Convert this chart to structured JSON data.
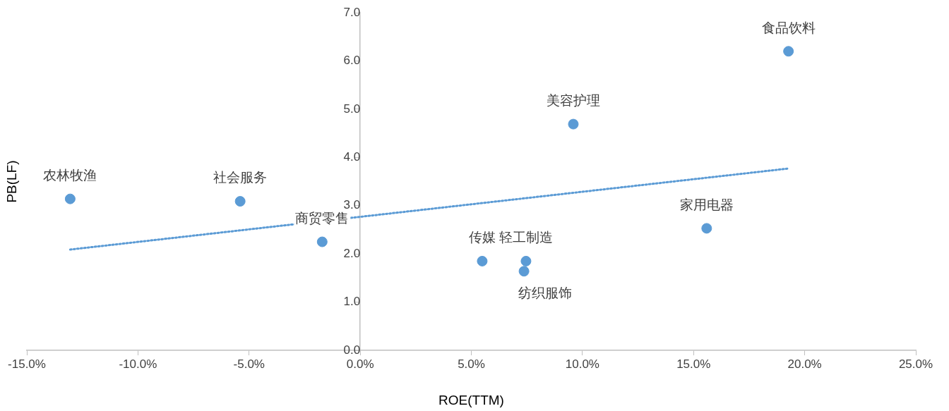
{
  "chart_data": {
    "type": "scatter",
    "xlabel": "ROE(TTM)",
    "ylabel": "PB(LF)",
    "xlim": [
      -15,
      25
    ],
    "ylim": [
      0,
      7
    ],
    "xticks": [
      {
        "value": -15,
        "label": "-15.0%"
      },
      {
        "value": -10,
        "label": "-10.0%"
      },
      {
        "value": -5,
        "label": "-5.0%"
      },
      {
        "value": 0,
        "label": "0.0%"
      },
      {
        "value": 5,
        "label": "5.0%"
      },
      {
        "value": 10,
        "label": "10.0%"
      },
      {
        "value": 15,
        "label": "15.0%"
      },
      {
        "value": 20,
        "label": "20.0%"
      },
      {
        "value": 25,
        "label": "25.0%"
      }
    ],
    "yticks": [
      {
        "value": 0,
        "label": "0.0"
      },
      {
        "value": 1,
        "label": "1.0"
      },
      {
        "value": 2,
        "label": "2.0"
      },
      {
        "value": 3,
        "label": "3.0"
      },
      {
        "value": 4,
        "label": "4.0"
      },
      {
        "value": 5,
        "label": "5.0"
      },
      {
        "value": 6,
        "label": "6.0"
      },
      {
        "value": 7,
        "label": "7.0"
      }
    ],
    "grid": false,
    "legend": false,
    "marker": "circle",
    "series": [
      {
        "color": "#5b9bd5",
        "x": [
          -13.05,
          -5.4,
          -1.71,
          5.49,
          7.46,
          7.37,
          9.59,
          15.59,
          19.27
        ],
        "values": [
          3.14,
          3.09,
          2.25,
          1.85,
          1.85,
          1.64,
          4.69,
          2.53,
          6.2
        ]
      },
      {
        "type": "line",
        "color": "#5b9bd5",
        "line_style": "dotted",
        "marker": "none",
        "x": [
          -13.05,
          19.27
        ],
        "values": [
          2.09,
          3.77
        ]
      }
    ],
    "annotations": [
      {
        "text": "农林牧渔",
        "x": -13.05,
        "y": 3.14
      },
      {
        "text": "社会服务",
        "x": -5.4,
        "y": 3.09
      },
      {
        "text": "商贸零售",
        "x": -1.71,
        "y": 2.25
      },
      {
        "text": "传媒",
        "x": 5.49,
        "y": 1.85
      },
      {
        "text": "轻工制造",
        "x": 7.46,
        "y": 1.85
      },
      {
        "text": "纺织服饰",
        "x": 7.37,
        "y": 1.64
      },
      {
        "text": "美容护理",
        "x": 9.59,
        "y": 4.69
      },
      {
        "text": "家用电器",
        "x": 15.59,
        "y": 2.53
      },
      {
        "text": "食品饮料",
        "x": 19.27,
        "y": 6.2
      }
    ]
  }
}
